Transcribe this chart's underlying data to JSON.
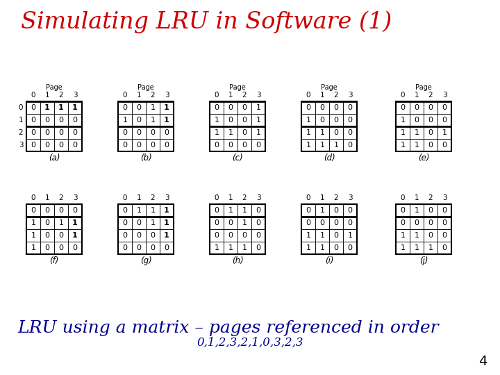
{
  "title": "Simulating LRU in Software (1)",
  "title_color": "#cc0000",
  "subtitle": "LRU using a matrix – pages referenced in order",
  "subtitle_color": "#00008b",
  "sequence": "0,1,2,3,2,1,0,3,2,3",
  "sequence_color": "#00008b",
  "page_number": "4",
  "matrices": [
    {
      "label": "(a)",
      "data": [
        [
          0,
          1,
          1,
          1
        ],
        [
          0,
          0,
          0,
          0
        ],
        [
          0,
          0,
          0,
          0
        ],
        [
          0,
          0,
          0,
          0
        ]
      ],
      "bold": [
        [
          false,
          true,
          true,
          true
        ],
        [
          false,
          false,
          false,
          false
        ],
        [
          false,
          false,
          false,
          false
        ],
        [
          false,
          false,
          false,
          false
        ]
      ],
      "thick_rows": [
        0,
        2
      ],
      "show_row_labels": true,
      "show_page_header": true
    },
    {
      "label": "(b)",
      "data": [
        [
          0,
          0,
          1,
          1
        ],
        [
          1,
          0,
          1,
          1
        ],
        [
          0,
          0,
          0,
          0
        ],
        [
          0,
          0,
          0,
          0
        ]
      ],
      "bold": [
        [
          false,
          false,
          false,
          true
        ],
        [
          false,
          false,
          false,
          true
        ],
        [
          false,
          false,
          false,
          false
        ],
        [
          false,
          false,
          false,
          false
        ]
      ],
      "thick_rows": [
        0,
        2
      ],
      "show_row_labels": false,
      "show_page_header": true
    },
    {
      "label": "(c)",
      "data": [
        [
          0,
          0,
          0,
          1
        ],
        [
          1,
          0,
          0,
          1
        ],
        [
          1,
          1,
          0,
          1
        ],
        [
          0,
          0,
          0,
          0
        ]
      ],
      "bold": [
        [
          false,
          false,
          false,
          false
        ],
        [
          false,
          false,
          false,
          false
        ],
        [
          false,
          false,
          false,
          false
        ],
        [
          false,
          false,
          false,
          false
        ]
      ],
      "thick_rows": [
        0,
        2
      ],
      "show_row_labels": false,
      "show_page_header": true
    },
    {
      "label": "(d)",
      "data": [
        [
          0,
          0,
          0,
          0
        ],
        [
          1,
          0,
          0,
          0
        ],
        [
          1,
          1,
          0,
          0
        ],
        [
          1,
          1,
          1,
          0
        ]
      ],
      "bold": [
        [
          false,
          false,
          false,
          false
        ],
        [
          false,
          false,
          false,
          false
        ],
        [
          false,
          false,
          false,
          false
        ],
        [
          false,
          false,
          false,
          false
        ]
      ],
      "thick_rows": [
        0,
        2
      ],
      "show_row_labels": false,
      "show_page_header": true
    },
    {
      "label": "(e)",
      "data": [
        [
          0,
          0,
          0,
          0
        ],
        [
          1,
          0,
          0,
          0
        ],
        [
          1,
          1,
          0,
          1
        ],
        [
          1,
          1,
          0,
          0
        ]
      ],
      "bold": [
        [
          false,
          false,
          false,
          false
        ],
        [
          false,
          false,
          false,
          false
        ],
        [
          false,
          false,
          false,
          false
        ],
        [
          false,
          false,
          false,
          false
        ]
      ],
      "thick_rows": [
        0,
        2
      ],
      "show_row_labels": false,
      "show_page_header": true
    },
    {
      "label": "(f)",
      "data": [
        [
          0,
          0,
          0,
          0
        ],
        [
          1,
          0,
          1,
          1
        ],
        [
          1,
          0,
          0,
          1
        ],
        [
          1,
          0,
          0,
          0
        ]
      ],
      "bold": [
        [
          false,
          false,
          false,
          false
        ],
        [
          false,
          false,
          false,
          true
        ],
        [
          false,
          false,
          false,
          true
        ],
        [
          false,
          false,
          false,
          false
        ]
      ],
      "thick_rows": [
        1
      ],
      "show_row_labels": false,
      "show_page_header": false
    },
    {
      "label": "(g)",
      "data": [
        [
          0,
          1,
          1,
          1
        ],
        [
          0,
          0,
          1,
          1
        ],
        [
          0,
          0,
          0,
          1
        ],
        [
          0,
          0,
          0,
          0
        ]
      ],
      "bold": [
        [
          false,
          false,
          false,
          true
        ],
        [
          false,
          false,
          false,
          true
        ],
        [
          false,
          false,
          false,
          true
        ],
        [
          false,
          false,
          false,
          false
        ]
      ],
      "thick_rows": [
        1
      ],
      "show_row_labels": false,
      "show_page_header": false
    },
    {
      "label": "(h)",
      "data": [
        [
          0,
          1,
          1,
          0
        ],
        [
          0,
          0,
          1,
          0
        ],
        [
          0,
          0,
          0,
          0
        ],
        [
          1,
          1,
          1,
          0
        ]
      ],
      "bold": [
        [
          false,
          false,
          false,
          false
        ],
        [
          false,
          false,
          false,
          false
        ],
        [
          false,
          false,
          false,
          false
        ],
        [
          false,
          false,
          false,
          false
        ]
      ],
      "thick_rows": [
        1
      ],
      "show_row_labels": false,
      "show_page_header": false
    },
    {
      "label": "(i)",
      "data": [
        [
          0,
          1,
          0,
          0
        ],
        [
          0,
          0,
          0,
          0
        ],
        [
          1,
          1,
          0,
          1
        ],
        [
          1,
          1,
          0,
          0
        ]
      ],
      "bold": [
        [
          false,
          false,
          false,
          false
        ],
        [
          false,
          false,
          false,
          false
        ],
        [
          false,
          false,
          false,
          false
        ],
        [
          false,
          false,
          false,
          false
        ]
      ],
      "thick_rows": [
        1
      ],
      "show_row_labels": false,
      "show_page_header": false
    },
    {
      "label": "(j)",
      "data": [
        [
          0,
          1,
          0,
          0
        ],
        [
          0,
          0,
          0,
          0
        ],
        [
          1,
          1,
          0,
          0
        ],
        [
          1,
          1,
          1,
          0
        ]
      ],
      "bold": [
        [
          false,
          false,
          false,
          false
        ],
        [
          false,
          false,
          false,
          false
        ],
        [
          false,
          false,
          false,
          false
        ],
        [
          false,
          false,
          false,
          false
        ]
      ],
      "thick_rows": [
        1
      ],
      "show_row_labels": false,
      "show_page_header": false
    }
  ],
  "bg_color": "#ffffff"
}
